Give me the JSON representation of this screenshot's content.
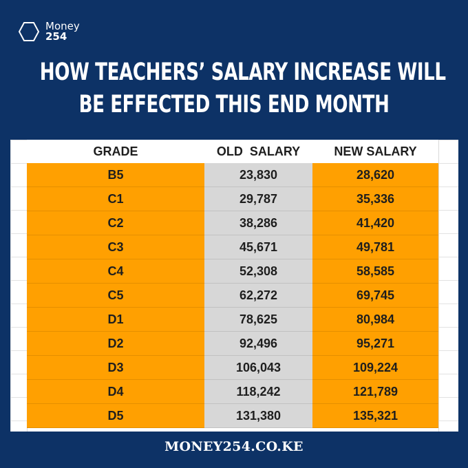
{
  "brand": {
    "name": "Money",
    "number": "254"
  },
  "headline": {
    "line1": "HOW TEACHERS’ SALARY INCREASE WILL",
    "line2": "BE EFFECTED THIS END MONTH"
  },
  "table": {
    "headers": [
      "GRADE",
      "OLD  SALARY",
      "NEW SALARY"
    ],
    "rows": [
      [
        "B5",
        "23,830",
        "28,620"
      ],
      [
        "C1",
        "29,787",
        "35,336"
      ],
      [
        "C2",
        "38,286",
        "41,420"
      ],
      [
        "C3",
        "45,671",
        "49,781"
      ],
      [
        "C4",
        "52,308",
        "58,585"
      ],
      [
        "C5",
        "62,272",
        "69,745"
      ],
      [
        "D1",
        "78,625",
        "80,984"
      ],
      [
        "D2",
        "92,496",
        "95,271"
      ],
      [
        "D3",
        "106,043",
        "109,224"
      ],
      [
        "D4",
        "118,242",
        "121,789"
      ],
      [
        "D5",
        "131,380",
        "135,321"
      ]
    ]
  },
  "footer": {
    "site": "MONEY254.CO.KE"
  },
  "colors": {
    "background": "#0d3266",
    "highlight": "#ffa001",
    "old_salary_fill": "#d7d7d7"
  },
  "icons": {
    "logo": "hexagon-logo-icon"
  }
}
